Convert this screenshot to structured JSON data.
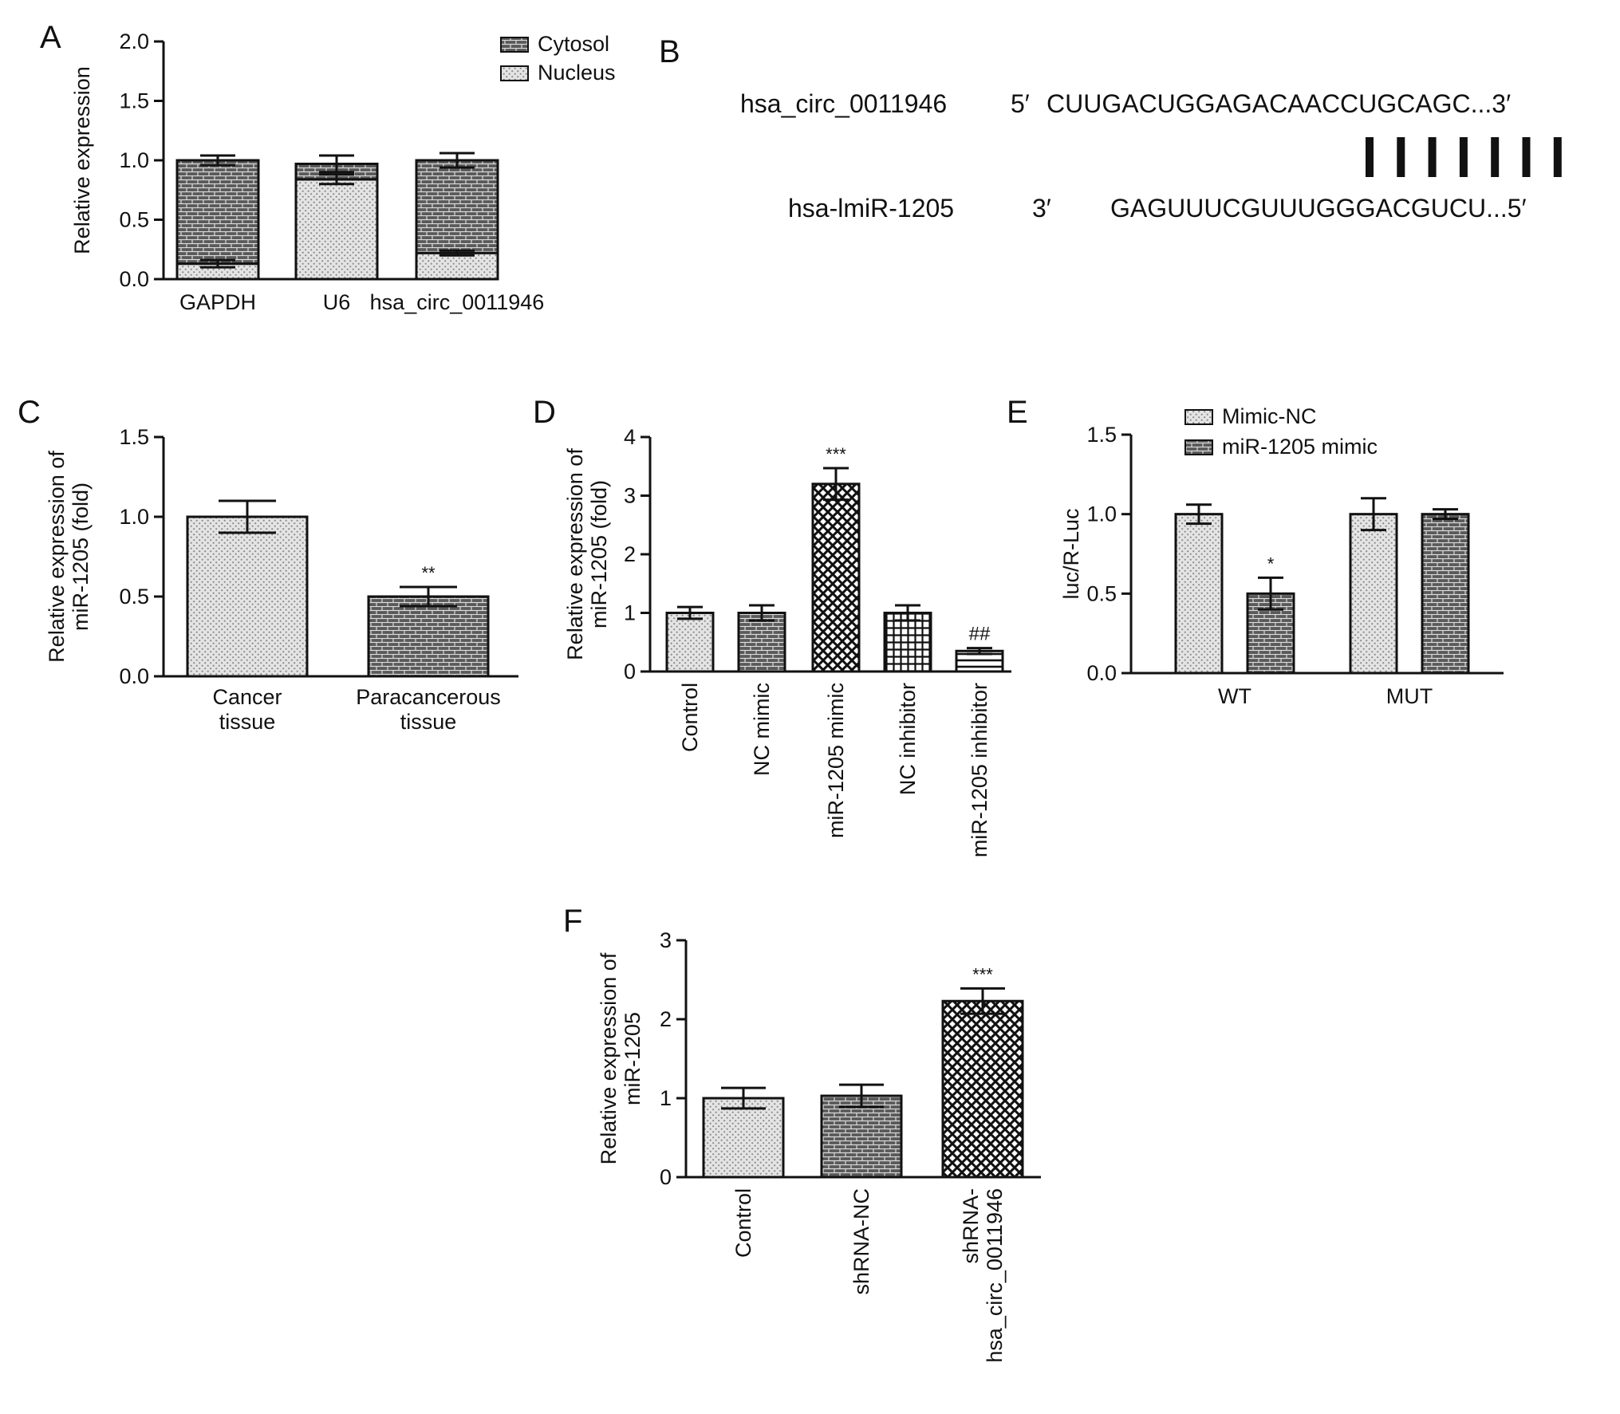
{
  "panel_labels": {
    "A": "A",
    "B": "B",
    "C": "C",
    "D": "D",
    "E": "E",
    "F": "F"
  },
  "sequence": {
    "top_name": "hsa_circ_0011946",
    "top_end5": "5′",
    "top_seq": "CUUGACUGGAGACAACCUGCAGC...3′",
    "bottom_name": "hsa-lmiR-1205",
    "bottom_end3": "3′",
    "bottom_seq": "GAGUUUCGUUUGGGACGUCU...5′",
    "pair_count": 7
  },
  "colors": {
    "dark": "#555555",
    "light": "#e0e0e0",
    "stroke": "#111111"
  },
  "chart_data": [
    {
      "panel": "A",
      "type": "bar",
      "stacked": true,
      "ylabel": "Relative expression",
      "ylim": [
        0,
        2.0
      ],
      "yticks": [
        "0.0",
        "0.5",
        "1.0",
        "1.5",
        "2.0"
      ],
      "categories": [
        "GAPDH",
        "U6",
        "hsa_circ_0011946"
      ],
      "series": [
        {
          "name": "Cytosol",
          "pattern": "brick-dark",
          "values": [
            0.87,
            0.13,
            0.78
          ],
          "errors": [
            0.04,
            0.07,
            0.06
          ]
        },
        {
          "name": "Nucleus",
          "pattern": "dots-light",
          "values": [
            0.13,
            0.84,
            0.22
          ],
          "errors": [
            0.03,
            0.04,
            0.02
          ]
        }
      ],
      "legend": "top-right"
    },
    {
      "panel": "C",
      "type": "bar",
      "ylabel": "Relative expression of miR-1205 (fold)",
      "ylim": [
        0,
        1.5
      ],
      "yticks": [
        "0.0",
        "0.5",
        "1.0",
        "1.5"
      ],
      "categories": [
        "Cancer tissue",
        "Paracancerous tissue"
      ],
      "values": [
        1.0,
        0.5
      ],
      "errors": [
        0.1,
        0.06
      ],
      "patterns": [
        "dots-light",
        "brick-dark"
      ],
      "annotations": [
        "",
        "**"
      ]
    },
    {
      "panel": "D",
      "type": "bar",
      "ylabel": "Relative expression of miR-1205 (fold)",
      "ylim": [
        0,
        4
      ],
      "yticks": [
        "0",
        "1",
        "2",
        "3",
        "4"
      ],
      "categories": [
        "Control",
        "NC mimic",
        "miR-1205 mimic",
        "NC inhibitor",
        "miR-1205 inhibitor"
      ],
      "values": [
        1.0,
        1.0,
        3.2,
        1.0,
        0.35
      ],
      "errors": [
        0.1,
        0.13,
        0.27,
        0.13,
        0.05
      ],
      "patterns": [
        "dots-light",
        "brick-dark",
        "checker",
        "grid",
        "stripes"
      ],
      "annotations": [
        "",
        "",
        "***",
        "",
        "##"
      ]
    },
    {
      "panel": "E",
      "type": "bar",
      "ylabel": "luc/R-Luc",
      "ylim": [
        0,
        1.5
      ],
      "yticks": [
        "0.0",
        "0.5",
        "1.0",
        "1.5"
      ],
      "categories": [
        "WT",
        "MUT"
      ],
      "series": [
        {
          "name": "Mimic-NC",
          "pattern": "dots-light",
          "values": [
            1.0,
            1.0
          ],
          "errors": [
            0.06,
            0.1
          ],
          "annotations": [
            "",
            ""
          ]
        },
        {
          "name": "miR-1205 mimic",
          "pattern": "brick-dark",
          "values": [
            0.5,
            1.0
          ],
          "errors": [
            0.1,
            0.03
          ],
          "annotations": [
            "*",
            ""
          ]
        }
      ],
      "legend": "top-left"
    },
    {
      "panel": "F",
      "type": "bar",
      "ylabel": "Relative expression of miR-1205",
      "ylim": [
        0,
        3
      ],
      "yticks": [
        "0",
        "1",
        "2",
        "3"
      ],
      "categories": [
        "Control",
        "shRNA-NC",
        "shRNA-hsa_circ_0011946"
      ],
      "values": [
        1.0,
        1.03,
        2.23
      ],
      "errors": [
        0.13,
        0.14,
        0.16
      ],
      "patterns": [
        "dots-light",
        "brick-dark",
        "checker"
      ],
      "annotations": [
        "",
        "",
        "***"
      ]
    }
  ]
}
